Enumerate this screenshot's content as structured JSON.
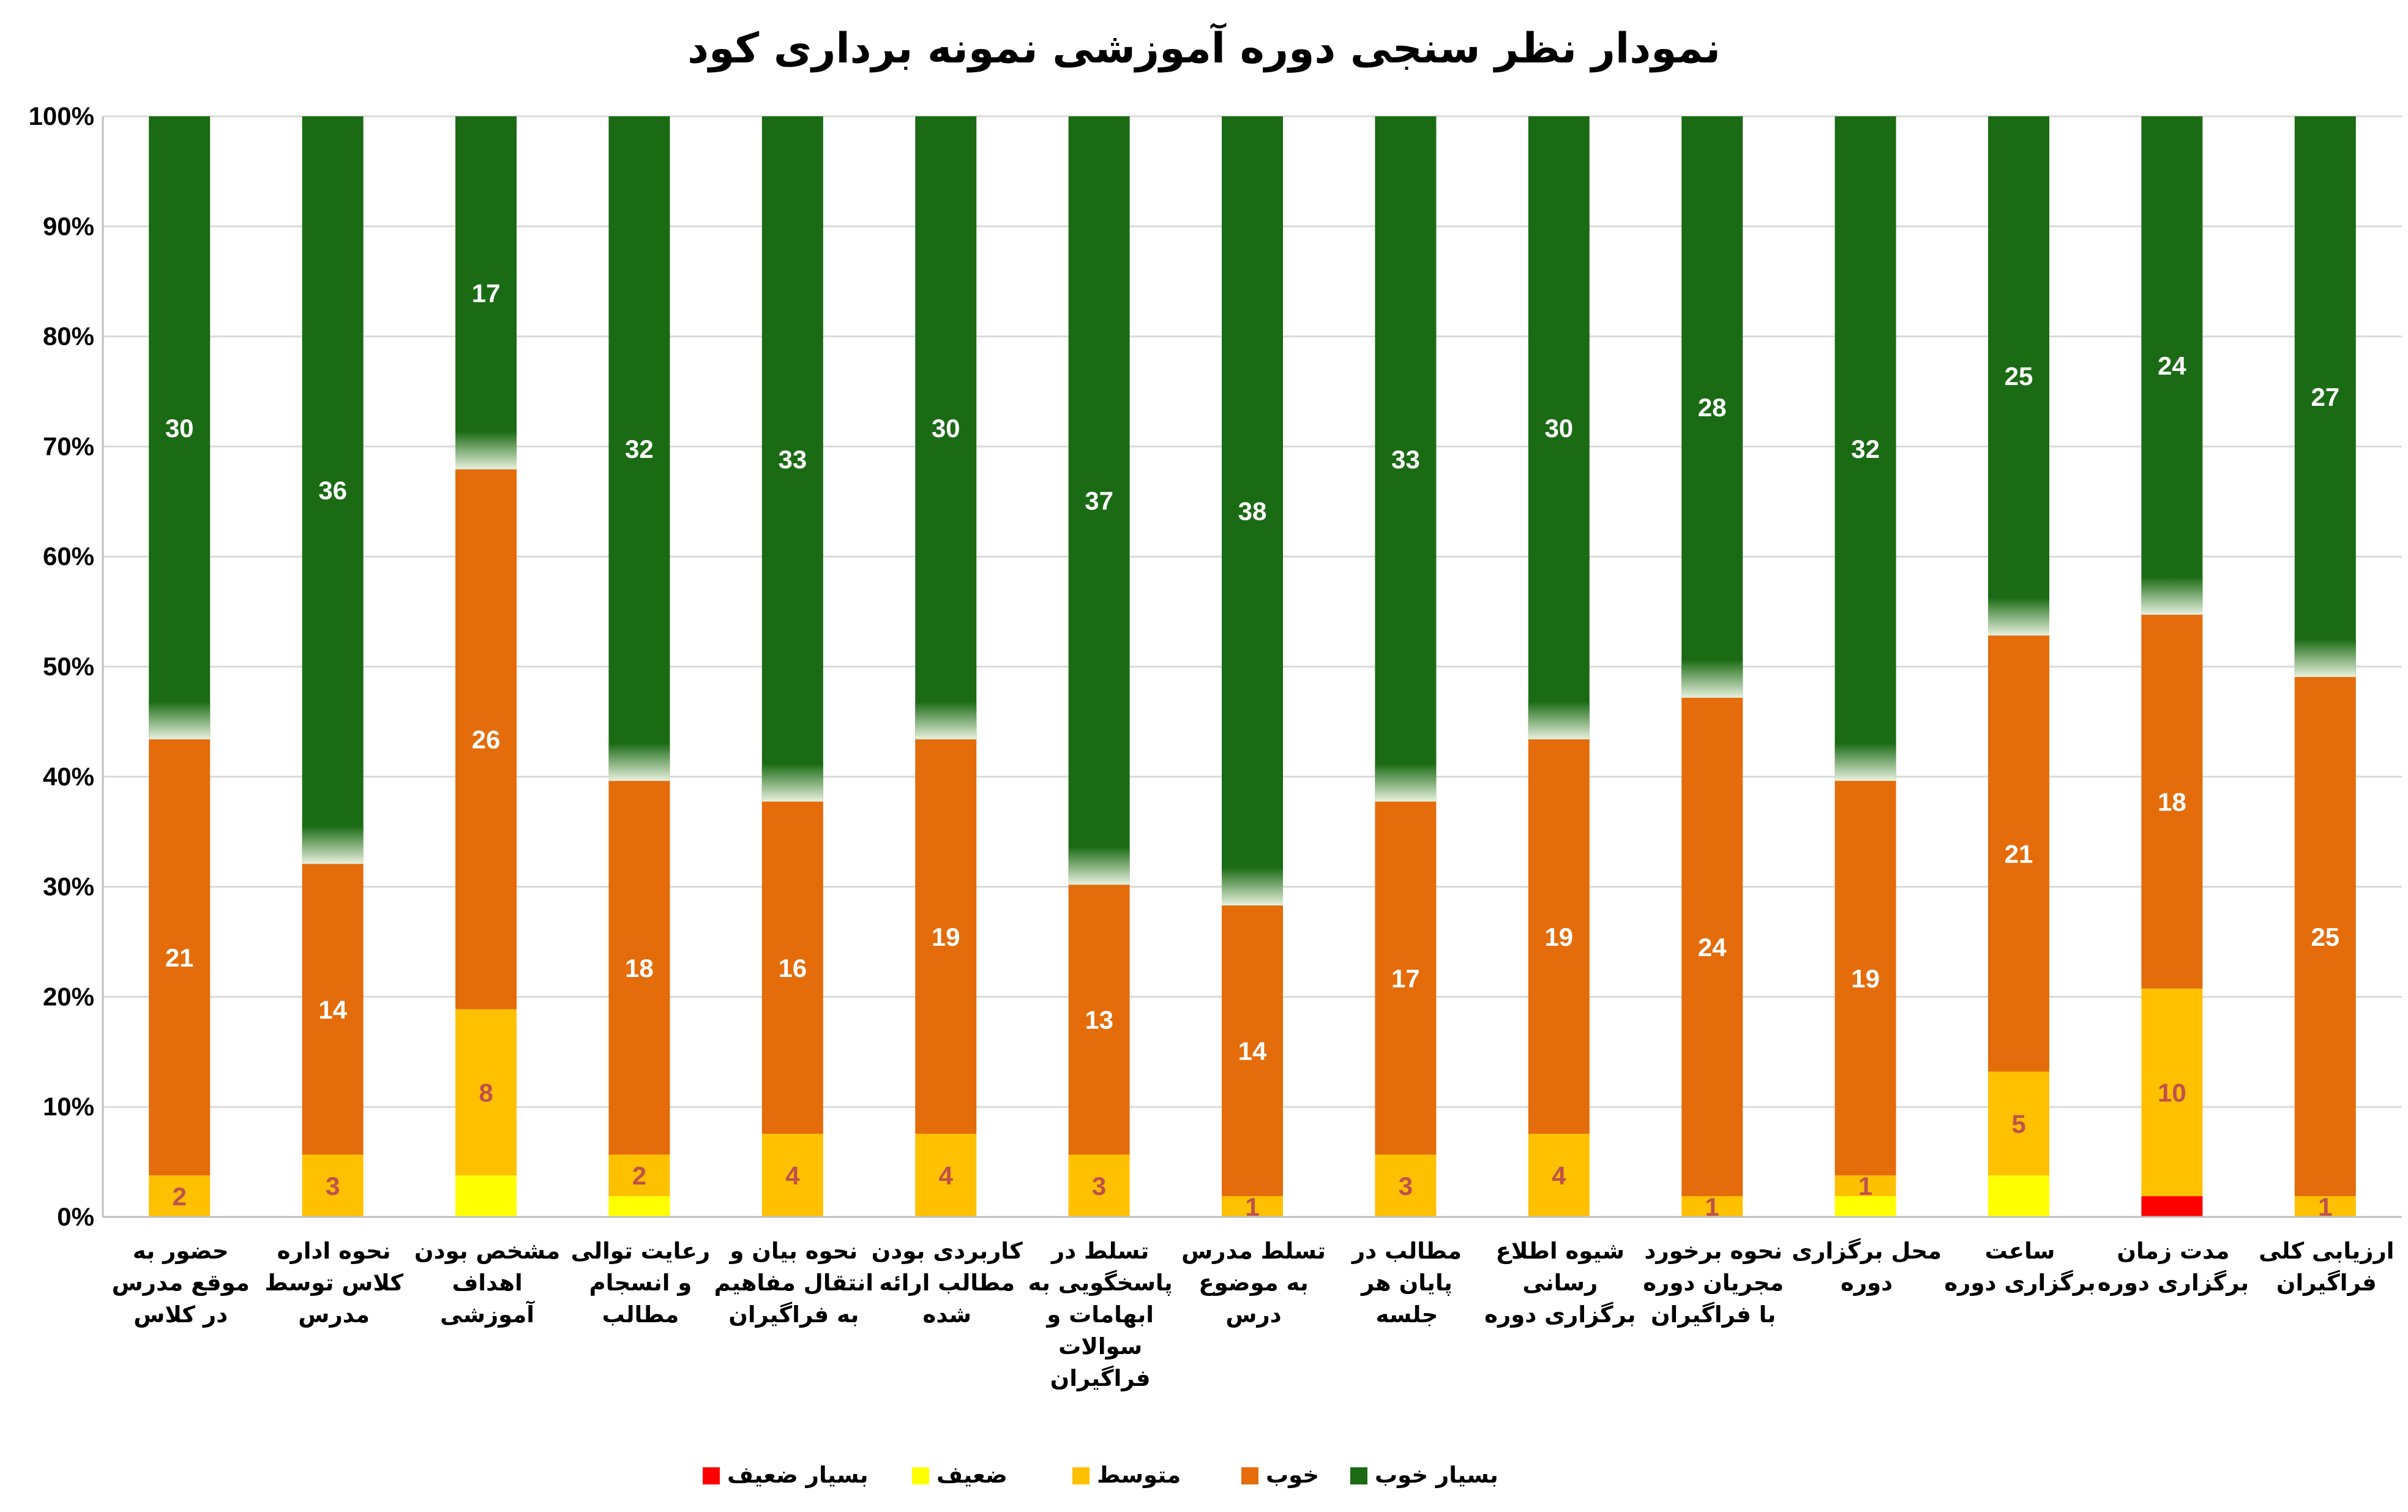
{
  "chart_data": {
    "type": "bar",
    "stacked": true,
    "normalized_percent": true,
    "title": "نمودار نظر سنجی دوره آموزشی  نمونه برداری کود",
    "xlabel": "",
    "ylabel": "",
    "ylim": [
      0,
      100
    ],
    "yticks": [
      "0%",
      "10%",
      "20%",
      "30%",
      "40%",
      "50%",
      "60%",
      "70%",
      "80%",
      "90%",
      "100%"
    ],
    "grid": true,
    "legend_position": "bottom",
    "categories": [
      [
        "حضور به",
        "موقع مدرس",
        "در کلاس"
      ],
      [
        "نحوه اداره",
        "کلاس توسط",
        "مدرس"
      ],
      [
        "مشخص بودن",
        "اهداف",
        "آموزشی"
      ],
      [
        "رعایت توالی",
        "و انسجام",
        "مطالب"
      ],
      [
        "نحوه بیان و",
        "انتقال مفاهیم",
        "به فراگیران"
      ],
      [
        "کاربردی بودن",
        "مطالب ارائه",
        "شده"
      ],
      [
        "تسلط در",
        "پاسخگویی به",
        "ابهامات و",
        "سوالات",
        "فراگیران"
      ],
      [
        "تسلط مدرس",
        "به موضوع",
        "درس"
      ],
      [
        "مطالب در",
        "پایان هر",
        "جلسه"
      ],
      [
        "شیوه اطلاع",
        "رسانی",
        "برگزاری دوره"
      ],
      [
        "نحوه برخورد",
        "مجریان دوره",
        "با فراگیران"
      ],
      [
        "محل برگزاری",
        "دوره"
      ],
      [
        "ساعت",
        "برگزاری دوره"
      ],
      [
        "مدت زمان",
        "برگزاری دوره"
      ],
      [
        "ارزیابی کلی",
        "فراگیران"
      ]
    ],
    "series": [
      {
        "name": "بسیار ضعیف",
        "color": "#FF0000",
        "label_color": "#FF0000",
        "values": [
          0,
          0,
          0,
          0,
          0,
          0,
          0,
          0,
          0,
          0,
          0,
          0,
          0,
          1,
          0
        ],
        "show_labels": false
      },
      {
        "name": "ضعیف",
        "color": "#FFFF00",
        "label_color": "#C0504D",
        "values": [
          0,
          0,
          2,
          1,
          0,
          0,
          0,
          0,
          0,
          0,
          0,
          1,
          2,
          0,
          0
        ],
        "show_labels": false
      },
      {
        "name": "متوسط",
        "color": "#FFC000",
        "label_color": "#C0504D",
        "values": [
          2,
          3,
          8,
          2,
          4,
          4,
          3,
          1,
          3,
          4,
          1,
          1,
          5,
          10,
          1
        ],
        "show_labels": true
      },
      {
        "name": "خوب",
        "color": "#E46C0A",
        "label_color": "#FFFFFF",
        "values": [
          21,
          14,
          26,
          18,
          16,
          19,
          13,
          14,
          17,
          19,
          24,
          19,
          21,
          18,
          25
        ],
        "show_labels": true
      },
      {
        "name": "بسیار خوب",
        "color": "#1A6B14",
        "label_color": "#FFFFFF",
        "values": [
          30,
          36,
          17,
          32,
          33,
          30,
          37,
          38,
          33,
          30,
          28,
          32,
          25,
          24,
          27
        ],
        "show_labels": true
      }
    ]
  }
}
